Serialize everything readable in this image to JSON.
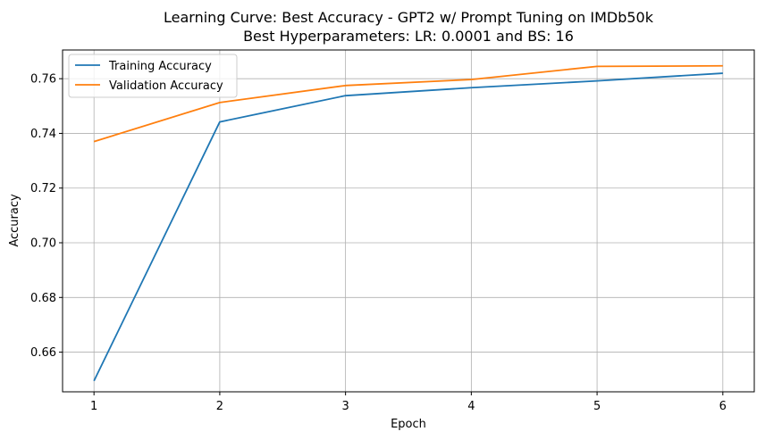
{
  "chart_data": {
    "type": "line",
    "title": "Learning Curve: Best Accuracy - GPT2 w/ Prompt Tuning on IMDb50k",
    "subtitle": "Best Hyperparameters: LR: 0.0001 and BS: 16",
    "xlabel": "Epoch",
    "ylabel": "Accuracy",
    "x": [
      1,
      2,
      3,
      4,
      5,
      6
    ],
    "xticks": [
      "1",
      "2",
      "3",
      "4",
      "5",
      "6"
    ],
    "yticks": [
      "0.66",
      "0.68",
      "0.70",
      "0.72",
      "0.74",
      "0.76"
    ],
    "ytick_values": [
      0.66,
      0.68,
      0.7,
      0.72,
      0.74,
      0.76
    ],
    "xlim": [
      0.75,
      6.25
    ],
    "ylim": [
      0.6455,
      0.7705
    ],
    "grid": true,
    "legend_position": "top-left",
    "series": [
      {
        "name": "Training Accuracy",
        "color": "#1f77b4",
        "values": [
          0.6495,
          0.7442,
          0.7538,
          0.7567,
          0.7592,
          0.762
        ]
      },
      {
        "name": "Validation Accuracy",
        "color": "#ff7f0e",
        "values": [
          0.737,
          0.7513,
          0.7575,
          0.7597,
          0.7645,
          0.7647
        ]
      }
    ]
  }
}
